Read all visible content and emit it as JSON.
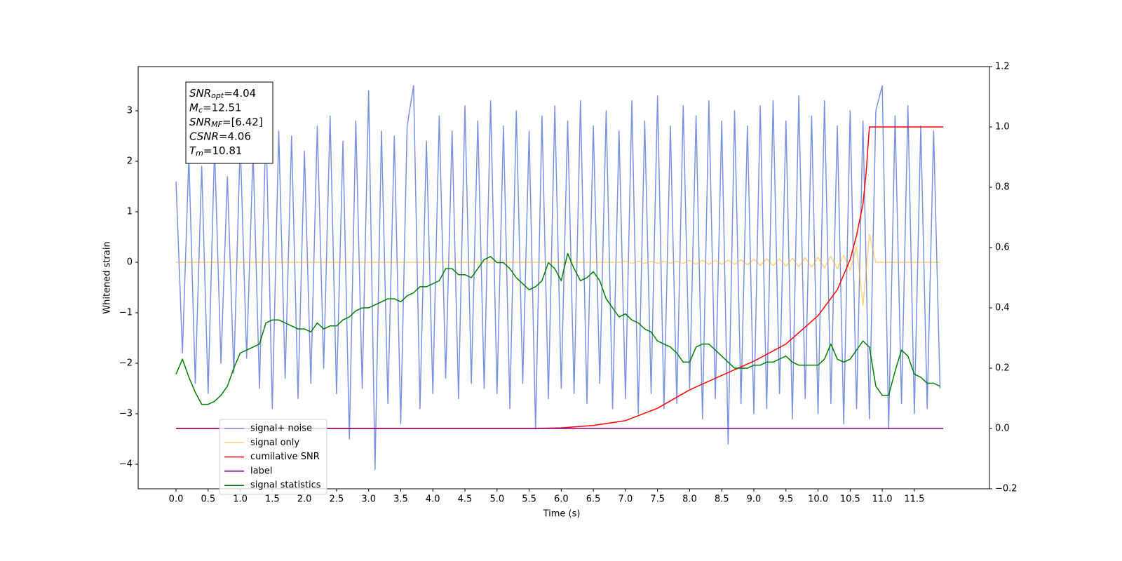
{
  "chart_data": {
    "type": "line",
    "xlabel": "Time (s)",
    "ylabel": "Whitened strain",
    "xlim": [
      -0.59,
      12.67
    ],
    "ylim": [
      -4.486,
      3.875
    ],
    "y2lim": [
      -0.2,
      1.2
    ],
    "xticks": [
      {
        "value": 0,
        "label": "0.0"
      },
      0.5,
      {
        "value": 1,
        "label": "1.0"
      },
      1.5,
      {
        "value": 2,
        "label": "2.0"
      },
      2.5,
      {
        "value": 3,
        "label": "3.0"
      },
      3.5,
      {
        "value": 4,
        "label": "4.0"
      },
      4.5,
      {
        "value": 5,
        "label": "5.0"
      },
      5.5,
      {
        "value": 6,
        "label": "6.0"
      },
      6.5,
      {
        "value": 7,
        "label": "7.0"
      },
      7.5,
      {
        "value": 8,
        "label": "8.0"
      },
      8.5,
      {
        "value": 9,
        "label": "9.0"
      },
      9.5,
      {
        "value": 10,
        "label": "10.0"
      },
      10.5,
      {
        "value": 11,
        "label": "11.0"
      },
      11.5
    ],
    "yticks": [
      {
        "value": -4,
        "label": "−4"
      },
      {
        "value": -3,
        "label": "−3"
      },
      {
        "value": -2,
        "label": "−2"
      },
      {
        "value": -1,
        "label": "−1"
      },
      0,
      1,
      2,
      3
    ],
    "y2ticks": [
      {
        "value": -0.2,
        "label": "−0.2"
      },
      {
        "value": 0,
        "label": "0.0"
      },
      0.2,
      0.4,
      0.6,
      0.8,
      {
        "value": 1,
        "label": "1.0"
      },
      1.2
    ],
    "grid": false,
    "legend": "lower left",
    "annotation": [
      {
        "name": "SNR",
        "sub": "opt",
        "value": "=4.04"
      },
      {
        "name": "M",
        "sub": "c",
        "value": "=12.51"
      },
      {
        "name": "SNR",
        "sub": "MF",
        "value": "=[6.42]"
      },
      {
        "name": "CSNR",
        "sub": "",
        "value": "=4.06"
      },
      {
        "name": "T",
        "sub": "m",
        "value": "=10.81"
      }
    ],
    "x": [
      0,
      0.1,
      0.2,
      0.3,
      0.4,
      0.5,
      0.6,
      0.7,
      0.8,
      0.9,
      1,
      1.1,
      1.2,
      1.3,
      1.4,
      1.5,
      1.6,
      1.7,
      1.8,
      1.9,
      2,
      2.1,
      2.2,
      2.3,
      2.4,
      2.5,
      2.6,
      2.7,
      2.8,
      2.9,
      3,
      3.1,
      3.2,
      3.3,
      3.4,
      3.5,
      3.6,
      3.7,
      3.8,
      3.9,
      4,
      4.1,
      4.2,
      4.3,
      4.4,
      4.5,
      4.6,
      4.7,
      4.8,
      4.9,
      5,
      5.1,
      5.2,
      5.3,
      5.4,
      5.5,
      5.6,
      5.7,
      5.8,
      5.9,
      6,
      6.1,
      6.2,
      6.3,
      6.4,
      6.5,
      6.6,
      6.7,
      6.8,
      6.9,
      7,
      7.1,
      7.2,
      7.3,
      7.4,
      7.5,
      7.6,
      7.7,
      7.8,
      7.9,
      8,
      8.1,
      8.2,
      8.3,
      8.4,
      8.5,
      8.6,
      8.7,
      8.8,
      8.9,
      9,
      9.1,
      9.2,
      9.3,
      9.4,
      9.5,
      9.6,
      9.7,
      9.8,
      9.9,
      10,
      10.1,
      10.2,
      10.3,
      10.4,
      10.5,
      10.6,
      10.7,
      10.8,
      10.9,
      11,
      11.1,
      11.2,
      11.3,
      11.4,
      11.5,
      11.6,
      11.7,
      11.8,
      11.9
    ],
    "series": [
      {
        "name": "signal+ noise",
        "color": "#6b86e0",
        "opacity": 0.9,
        "axis": "y",
        "values": [
          1.6,
          -1.8,
          2.1,
          -2.4,
          1.9,
          -2.6,
          2.3,
          -2.0,
          1.7,
          -2.2,
          2.4,
          -1.9,
          2.2,
          -2.5,
          2.8,
          -2.9,
          2.6,
          -2.3,
          2.5,
          -2.7,
          2.2,
          -2.4,
          2.7,
          -2.1,
          2.9,
          -2.6,
          2.4,
          -3.5,
          2.8,
          -2.5,
          3.4,
          -4.1,
          2.6,
          -2.8,
          2.5,
          -3.2,
          2.7,
          3.5,
          -2.9,
          2.4,
          -2.6,
          2.9,
          -2.3,
          2.6,
          -2.7,
          3.1,
          -2.4,
          2.8,
          -2.5,
          3.2,
          -2.6,
          2.7,
          -2.9,
          3.0,
          -2.4,
          2.6,
          -3.3,
          2.9,
          -2.7,
          3.1,
          -2.5,
          2.8,
          -2.6,
          3.2,
          -2.8,
          2.7,
          -2.4,
          3.0,
          -2.9,
          2.6,
          -2.7,
          3.2,
          -3.0,
          2.8,
          -2.6,
          3.3,
          -2.9,
          2.7,
          -2.8,
          3.1,
          -2.5,
          2.9,
          -3.1,
          3.2,
          -2.7,
          2.8,
          -3.6,
          3.0,
          -2.8,
          2.7,
          -3.0,
          3.1,
          -2.9,
          3.2,
          -2.6,
          2.8,
          -3.1,
          3.3,
          -2.7,
          2.9,
          -3.0,
          3.2,
          -2.8,
          2.7,
          -3.2,
          3.0,
          -2.9,
          2.8,
          -3.1,
          3.0,
          3.5,
          -3.3,
          2.9,
          -2.8,
          3.1,
          -3.0,
          2.7,
          -2.9,
          2.6,
          -2.5
        ]
      },
      {
        "name": "signal only",
        "color": "#ffa500",
        "opacity": 0.5,
        "axis": "y",
        "values": [
          0,
          0,
          0,
          0,
          0,
          0,
          0,
          0,
          0,
          0,
          0,
          0,
          0,
          0,
          0,
          0,
          0,
          0,
          0,
          0,
          0,
          0,
          0,
          0,
          0,
          0,
          0,
          0,
          0,
          0,
          0,
          0,
          0,
          0,
          0,
          0,
          0,
          0,
          0,
          0,
          0,
          0,
          0,
          0,
          0,
          0,
          0,
          0,
          0,
          0,
          0,
          0,
          0,
          0,
          0,
          0,
          0,
          0,
          0,
          0,
          0,
          0,
          0,
          0,
          0,
          0,
          0,
          0,
          0,
          0,
          0.02,
          -0.02,
          0.02,
          -0.02,
          0.02,
          -0.02,
          0.02,
          -0.02,
          0.02,
          -0.02,
          0.04,
          -0.04,
          0.04,
          -0.04,
          0.04,
          -0.04,
          0.04,
          -0.04,
          0.05,
          -0.05,
          0.06,
          -0.06,
          0.07,
          -0.07,
          0.07,
          -0.08,
          0.08,
          -0.09,
          0.09,
          -0.1,
          0.1,
          -0.11,
          0.12,
          -0.13,
          0.14,
          -0.16,
          0.3,
          -0.85,
          0.55,
          0,
          0,
          0,
          0,
          0,
          0,
          0,
          0,
          0,
          0,
          0
        ]
      },
      {
        "name": "cumilative SNR",
        "color": "#ff0000",
        "opacity": 1,
        "axis": "y2",
        "x": [
          0,
          5.5,
          6,
          6.5,
          7,
          7.5,
          8,
          8.5,
          9,
          9.5,
          10,
          10.3,
          10.5,
          10.6,
          10.7,
          10.75,
          10.8,
          11.95
        ],
        "values": [
          0,
          0,
          0.002,
          0.01,
          0.026,
          0.067,
          0.128,
          0.176,
          0.223,
          0.28,
          0.374,
          0.46,
          0.56,
          0.64,
          0.745,
          0.85,
          1.0,
          1.0
        ]
      },
      {
        "name": "label",
        "color": "#800080",
        "opacity": 1,
        "axis": "y2",
        "x": [
          0,
          11.95
        ],
        "values": [
          0,
          0
        ]
      },
      {
        "name": "signal statistics",
        "color": "#008000",
        "opacity": 1,
        "axis": "y2",
        "values": [
          0.18,
          0.23,
          0.17,
          0.12,
          0.08,
          0.08,
          0.09,
          0.11,
          0.14,
          0.2,
          0.25,
          0.26,
          0.27,
          0.28,
          0.35,
          0.36,
          0.36,
          0.35,
          0.34,
          0.33,
          0.33,
          0.32,
          0.35,
          0.33,
          0.34,
          0.34,
          0.36,
          0.37,
          0.39,
          0.4,
          0.4,
          0.41,
          0.42,
          0.43,
          0.43,
          0.42,
          0.44,
          0.45,
          0.47,
          0.47,
          0.48,
          0.49,
          0.53,
          0.53,
          0.51,
          0.51,
          0.5,
          0.53,
          0.56,
          0.57,
          0.55,
          0.55,
          0.53,
          0.5,
          0.48,
          0.46,
          0.47,
          0.49,
          0.55,
          0.53,
          0.49,
          0.58,
          0.53,
          0.49,
          0.5,
          0.52,
          0.49,
          0.43,
          0.4,
          0.37,
          0.38,
          0.36,
          0.35,
          0.33,
          0.32,
          0.29,
          0.28,
          0.27,
          0.25,
          0.22,
          0.22,
          0.27,
          0.28,
          0.28,
          0.26,
          0.24,
          0.22,
          0.2,
          0.2,
          0.2,
          0.21,
          0.21,
          0.22,
          0.22,
          0.23,
          0.24,
          0.22,
          0.21,
          0.21,
          0.21,
          0.21,
          0.23,
          0.28,
          0.23,
          0.22,
          0.23,
          0.26,
          0.29,
          0.27,
          0.14,
          0.11,
          0.11,
          0.19,
          0.26,
          0.24,
          0.18,
          0.17,
          0.15,
          0.15,
          0.14
        ]
      }
    ]
  }
}
